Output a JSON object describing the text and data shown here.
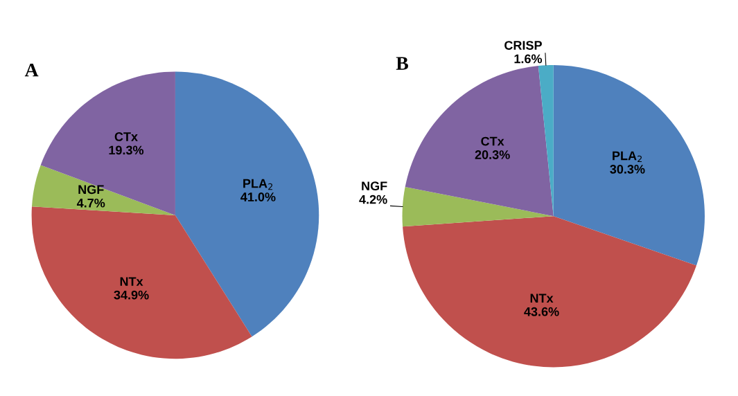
{
  "chart_data": [
    {
      "type": "pie",
      "title": "A",
      "categories": [
        "PLA$_{2}$",
        "NTx",
        "NGF",
        "CTx"
      ],
      "values": [
        41.0,
        34.9,
        4.7,
        19.3
      ],
      "colors": [
        "#4f81bd",
        "#c0504d",
        "#9bbb59",
        "#8064a2"
      ],
      "value_labels": [
        "41.0%",
        "34.9%",
        "4.7%",
        "19.3%"
      ]
    },
    {
      "type": "pie",
      "title": "B",
      "categories": [
        "PLA$_{2}$",
        "NTx",
        "NGF",
        "CTx",
        "CRISP"
      ],
      "values": [
        30.3,
        43.6,
        4.2,
        20.3,
        1.6
      ],
      "colors": [
        "#4f81bd",
        "#c0504d",
        "#9bbb59",
        "#8064a2",
        "#4bacc6"
      ],
      "value_labels": [
        "30.3%",
        "43.6%",
        "4.2%",
        "20.3%",
        "1.6%"
      ]
    }
  ]
}
